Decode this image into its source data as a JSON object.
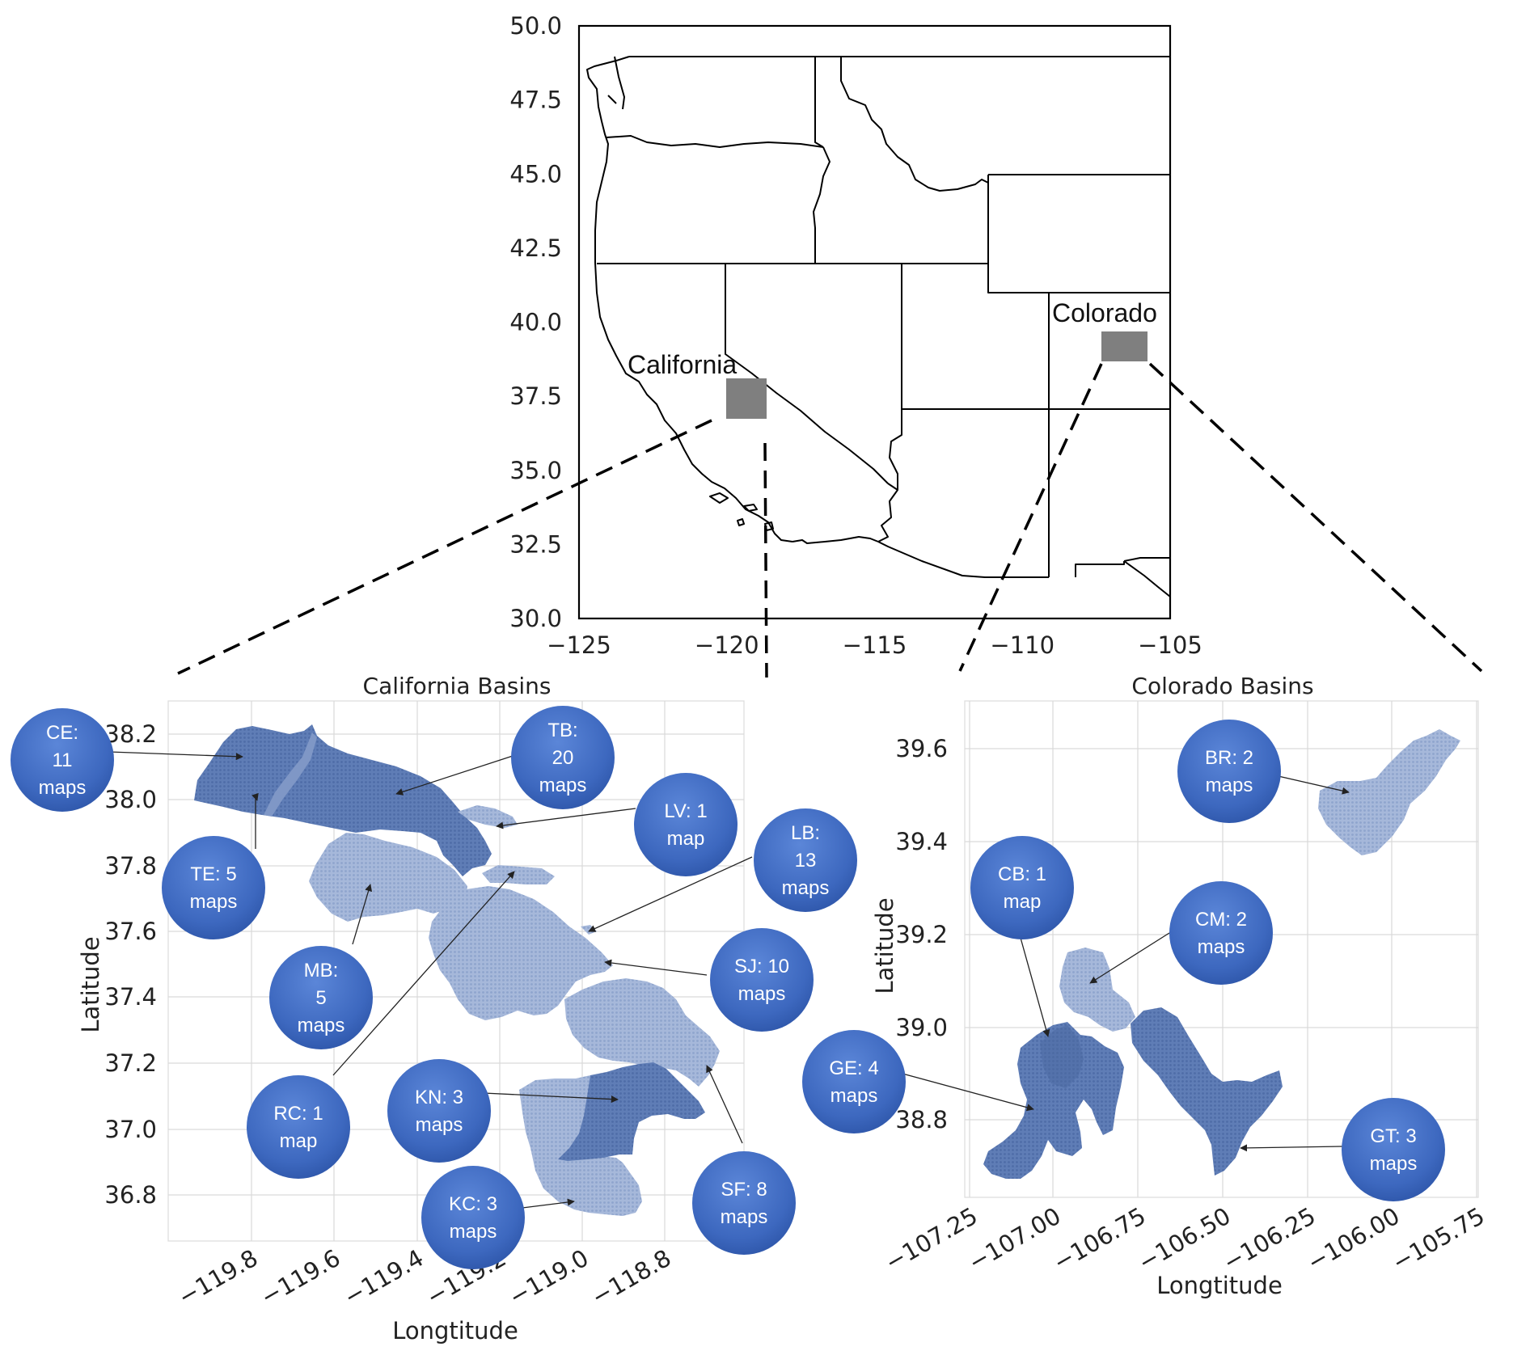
{
  "overview_map": {
    "x_ticks": [
      "−125",
      "−120",
      "−115",
      "−110",
      "−105"
    ],
    "y_ticks": [
      "50.0",
      "47.5",
      "45.0",
      "42.5",
      "40.0",
      "37.5",
      "35.0",
      "32.5",
      "30.0"
    ],
    "xlim": [
      -125,
      -105
    ],
    "ylim": [
      30,
      50
    ],
    "labels": {
      "california": "California",
      "colorado": "Colorado"
    },
    "region_fill": "#7f7f7f"
  },
  "california": {
    "title": "California Basins",
    "xlabel": "Longtitude",
    "ylabel": "Latitude",
    "x_ticks": [
      "−119.8",
      "−119.6",
      "−119.4",
      "−119.2",
      "−119.0",
      "−118.8"
    ],
    "y_ticks": [
      "38.2",
      "38.0",
      "37.8",
      "37.6",
      "37.4",
      "37.2",
      "37.0",
      "36.8"
    ],
    "basins": [
      {
        "code": "CE",
        "l1": "CE:",
        "l2": "11",
        "l3": "maps"
      },
      {
        "code": "TB",
        "l1": "TB:",
        "l2": "20",
        "l3": "maps"
      },
      {
        "code": "LV",
        "l1": "LV: 1",
        "l2": "map",
        "l3": ""
      },
      {
        "code": "LB",
        "l1": "LB:",
        "l2": "13",
        "l3": "maps"
      },
      {
        "code": "TE",
        "l1": "TE: 5",
        "l2": "maps",
        "l3": ""
      },
      {
        "code": "MB",
        "l1": "MB:",
        "l2": "5",
        "l3": "maps"
      },
      {
        "code": "SJ",
        "l1": "SJ: 10",
        "l2": "maps",
        "l3": ""
      },
      {
        "code": "RC",
        "l1": "RC: 1",
        "l2": "map",
        "l3": ""
      },
      {
        "code": "KN",
        "l1": "KN: 3",
        "l2": "maps",
        "l3": ""
      },
      {
        "code": "SF",
        "l1": "SF: 8",
        "l2": "maps",
        "l3": ""
      },
      {
        "code": "KC",
        "l1": "KC: 3",
        "l2": "maps",
        "l3": ""
      }
    ]
  },
  "colorado": {
    "title": "Colorado Basins",
    "xlabel": "Longtitude",
    "ylabel": "Latitude",
    "x_ticks": [
      "−107.25",
      "−107.00",
      "−106.75",
      "−106.50",
      "−106.25",
      "−106.00",
      "−105.75"
    ],
    "y_ticks": [
      "39.6",
      "39.4",
      "39.2",
      "39.0",
      "38.8"
    ],
    "basins": [
      {
        "code": "BR",
        "l1": "BR: 2",
        "l2": "maps",
        "l3": ""
      },
      {
        "code": "CB",
        "l1": "CB: 1",
        "l2": "map",
        "l3": ""
      },
      {
        "code": "CM",
        "l1": "CM: 2",
        "l2": "maps",
        "l3": ""
      },
      {
        "code": "GE",
        "l1": "GE: 4",
        "l2": "maps",
        "l3": ""
      },
      {
        "code": "GT",
        "l1": "GT: 3",
        "l2": "maps",
        "l3": ""
      }
    ]
  },
  "colors": {
    "basin_dark": "#5a79b3",
    "basin_light": "#9fb3d6",
    "bubble": "#3f6cc4"
  }
}
